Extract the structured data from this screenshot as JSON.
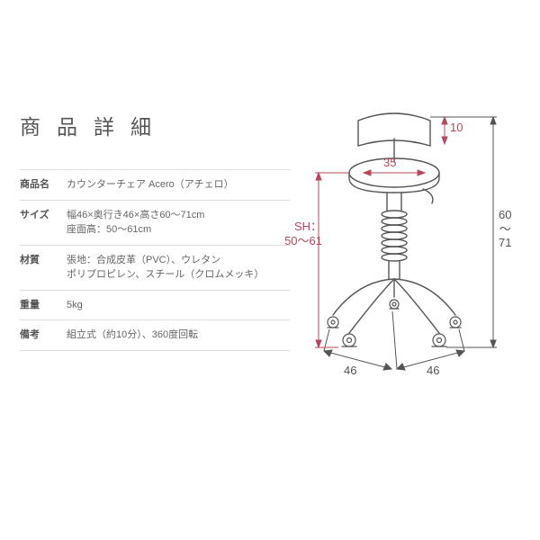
{
  "title": "商品詳細",
  "specs": [
    {
      "label": "商品名",
      "value": "カウンターチェア Acero（アチェロ）"
    },
    {
      "label": "サイズ",
      "value": "幅46×奥行き46×高さ60～71cm\n座面高：50～61cm"
    },
    {
      "label": "材質",
      "value": "張地：合成皮革（PVC）、ウレタン\nポリプロピレン、スチール（クロムメッキ）"
    },
    {
      "label": "重量",
      "value": "5kg"
    },
    {
      "label": "備考",
      "value": "組立式（約10分）、360度回転"
    }
  ],
  "diagram": {
    "colors": {
      "line": "#555555",
      "dim": "#555555",
      "dim_red": "#b8475a",
      "bg": "#ffffff"
    },
    "stroke_width": 1.4,
    "dims": {
      "back_height": "10",
      "seat_width": "35",
      "seat_height": "SH：\n50～61",
      "total_height": "60\n～\n71",
      "base_depth": "46",
      "base_width": "46"
    }
  }
}
